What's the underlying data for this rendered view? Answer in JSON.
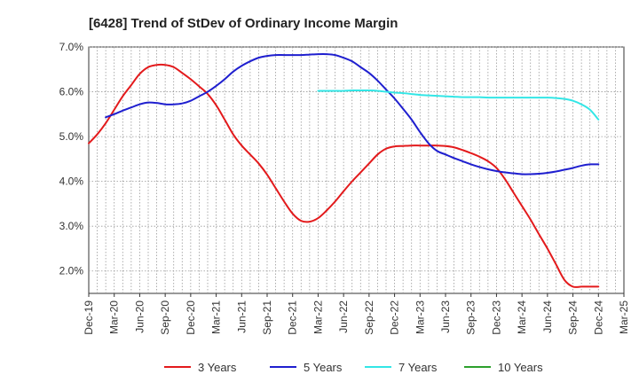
{
  "chart_data": {
    "type": "line",
    "title": "[6428]  Trend of StDev of Ordinary Income Margin",
    "xlabel": "",
    "ylabel": "",
    "ylim": [
      1.5,
      7.0
    ],
    "yticks": [
      2.0,
      3.0,
      4.0,
      5.0,
      6.0,
      7.0
    ],
    "ytick_labels": [
      "2.0%",
      "3.0%",
      "4.0%",
      "5.0%",
      "6.0%",
      "7.0%"
    ],
    "x_tick_labels": [
      "Dec-19",
      "Mar-20",
      "Jun-20",
      "Sep-20",
      "Dec-20",
      "Mar-21",
      "Jun-21",
      "Sep-21",
      "Dec-21",
      "Mar-22",
      "Jun-22",
      "Sep-22",
      "Dec-22",
      "Mar-23",
      "Jun-23",
      "Sep-23",
      "Dec-23",
      "Mar-24",
      "Jun-24",
      "Sep-24",
      "Dec-24",
      "Mar-25"
    ],
    "x_unit": "month index from Dec-19",
    "xlim": [
      0,
      63
    ],
    "grid": true,
    "legend_position": "bottom",
    "series": [
      {
        "name": "3 Years",
        "color": "#e31a1c",
        "x": [
          0,
          1,
          2,
          3,
          4,
          5,
          6,
          7,
          8,
          9,
          10,
          11,
          12,
          13,
          14,
          15,
          16,
          17,
          18,
          19,
          20,
          21,
          22,
          23,
          24,
          25,
          26,
          27,
          28,
          29,
          30,
          31,
          32,
          33,
          34,
          35,
          36,
          37,
          38,
          39,
          40,
          41,
          42,
          43,
          44,
          45,
          46,
          47,
          48,
          49,
          50,
          51,
          52,
          53,
          54,
          55,
          56,
          57,
          58,
          59,
          60
        ],
        "values": [
          4.85,
          5.05,
          5.3,
          5.6,
          5.9,
          6.15,
          6.4,
          6.55,
          6.6,
          6.6,
          6.55,
          6.42,
          6.28,
          6.12,
          5.95,
          5.7,
          5.38,
          5.05,
          4.8,
          4.6,
          4.4,
          4.15,
          3.85,
          3.55,
          3.28,
          3.12,
          3.1,
          3.18,
          3.35,
          3.55,
          3.78,
          4.0,
          4.2,
          4.4,
          4.6,
          4.73,
          4.78,
          4.79,
          4.8,
          4.8,
          4.8,
          4.8,
          4.79,
          4.76,
          4.7,
          4.63,
          4.55,
          4.45,
          4.3,
          4.05,
          3.75,
          3.45,
          3.15,
          2.82,
          2.5,
          2.15,
          1.8,
          1.65,
          1.65,
          1.65,
          1.65
        ]
      },
      {
        "name": "5 Years",
        "color": "#1f1fcf",
        "x": [
          2,
          3,
          4,
          5,
          6,
          7,
          8,
          9,
          10,
          11,
          12,
          13,
          14,
          15,
          16,
          17,
          18,
          19,
          20,
          21,
          22,
          23,
          24,
          25,
          26,
          27,
          28,
          29,
          30,
          31,
          32,
          33,
          34,
          35,
          36,
          37,
          38,
          39,
          40,
          41,
          42,
          43,
          44,
          45,
          46,
          47,
          48,
          49,
          50,
          51,
          52,
          53,
          54,
          55,
          56,
          57,
          58,
          59,
          60
        ],
        "values": [
          5.43,
          5.5,
          5.58,
          5.65,
          5.72,
          5.76,
          5.75,
          5.72,
          5.72,
          5.74,
          5.8,
          5.9,
          6.0,
          6.13,
          6.28,
          6.45,
          6.58,
          6.68,
          6.76,
          6.8,
          6.82,
          6.82,
          6.82,
          6.82,
          6.83,
          6.84,
          6.84,
          6.82,
          6.76,
          6.68,
          6.55,
          6.42,
          6.25,
          6.05,
          5.85,
          5.62,
          5.38,
          5.1,
          4.85,
          4.68,
          4.6,
          4.52,
          4.45,
          4.38,
          4.32,
          4.27,
          4.23,
          4.2,
          4.18,
          4.16,
          4.16,
          4.17,
          4.19,
          4.22,
          4.26,
          4.3,
          4.35,
          4.38,
          4.38
        ]
      },
      {
        "name": "7 Years",
        "color": "#33e6e6",
        "x": [
          27,
          28,
          29,
          30,
          31,
          32,
          33,
          34,
          35,
          36,
          37,
          38,
          39,
          40,
          41,
          42,
          43,
          44,
          45,
          46,
          47,
          48,
          49,
          50,
          51,
          52,
          53,
          54,
          55,
          56,
          57,
          58,
          59,
          60
        ],
        "values": [
          6.02,
          6.02,
          6.02,
          6.02,
          6.03,
          6.03,
          6.03,
          6.02,
          6.0,
          5.98,
          5.97,
          5.95,
          5.93,
          5.92,
          5.91,
          5.9,
          5.89,
          5.88,
          5.88,
          5.88,
          5.87,
          5.87,
          5.87,
          5.87,
          5.87,
          5.87,
          5.87,
          5.87,
          5.86,
          5.84,
          5.8,
          5.72,
          5.6,
          5.38
        ]
      },
      {
        "name": "10 Years",
        "color": "#2ca02c",
        "x": [],
        "values": []
      }
    ]
  }
}
